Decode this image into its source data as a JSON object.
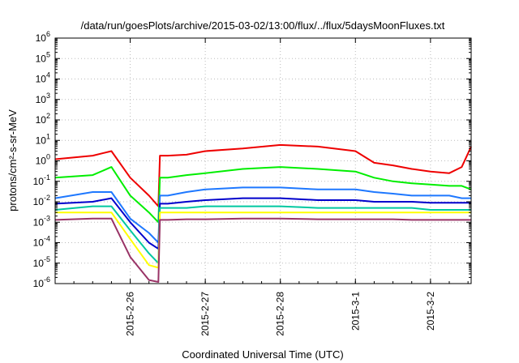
{
  "chart_data": {
    "type": "line",
    "title": "/data/run/goesPlots/archive/2015-03-02/13:00/flux/../flux/5daysMoonFluxes.txt",
    "xlabel": "Coordinated Universal Time (UTC)",
    "ylabel": "protons/cm²-s-sr-MeV",
    "yscale": "log",
    "ylim": [
      1e-06,
      1000000.0
    ],
    "xlim": [
      "2015-02-25T00:00",
      "2015-03-02T13:00"
    ],
    "x_ticks": [
      "2015-2-26",
      "2015-2-27",
      "2015-2-28",
      "2015-3-1",
      "2015-3-2"
    ],
    "y_ticks": [
      "10-6",
      "10-5",
      "10-4",
      "10-3",
      "10-2",
      "10-1",
      "100",
      "101",
      "102",
      "103",
      "104",
      "105",
      "106"
    ],
    "grid": true,
    "legend": "none",
    "x": [
      "2015-02-25T00:00",
      "2015-02-25T12:00",
      "2015-02-25T18:00",
      "2015-02-26T00:00",
      "2015-02-26T06:00",
      "2015-02-26T09:00",
      "2015-02-26T09:30",
      "2015-02-26T12:00",
      "2015-02-26T18:00",
      "2015-02-27T00:00",
      "2015-02-27T12:00",
      "2015-02-28T00:00",
      "2015-02-28T12:00",
      "2015-03-01T00:00",
      "2015-03-01T06:00",
      "2015-03-01T12:00",
      "2015-03-01T18:00",
      "2015-03-02T00:00",
      "2015-03-02T06:00",
      "2015-03-02T10:00",
      "2015-03-02T13:00"
    ],
    "series": [
      {
        "color": "#ee0000",
        "values": [
          1.2,
          1.8,
          3,
          0.15,
          0.02,
          0.006,
          1.8,
          1.8,
          2,
          3,
          4,
          6,
          5,
          3,
          0.8,
          0.6,
          0.4,
          0.3,
          0.25,
          0.5,
          5
        ]
      },
      {
        "color": "#00ee00",
        "values": [
          0.15,
          0.2,
          0.5,
          0.02,
          0.003,
          0.001,
          0.15,
          0.15,
          0.2,
          0.25,
          0.4,
          0.5,
          0.4,
          0.3,
          0.15,
          0.1,
          0.08,
          0.07,
          0.06,
          0.06,
          0.04
        ]
      },
      {
        "color": "#1e78ff",
        "values": [
          0.015,
          0.03,
          0.03,
          0.0015,
          0.0003,
          0.0001,
          0.02,
          0.02,
          0.03,
          0.04,
          0.05,
          0.05,
          0.04,
          0.04,
          0.03,
          0.025,
          0.02,
          0.02,
          0.02,
          0.015,
          0.015
        ]
      },
      {
        "color": "#0000cc",
        "values": [
          0.008,
          0.01,
          0.015,
          0.001,
          0.0001,
          5e-05,
          0.008,
          0.008,
          0.01,
          0.012,
          0.015,
          0.015,
          0.012,
          0.012,
          0.01,
          0.01,
          0.01,
          0.009,
          0.009,
          0.009,
          0.009
        ]
      },
      {
        "color": "#00c8a0",
        "values": [
          0.004,
          0.006,
          0.006,
          0.0004,
          3e-05,
          1e-05,
          0.005,
          0.005,
          0.005,
          0.006,
          0.006,
          0.006,
          0.005,
          0.005,
          0.005,
          0.005,
          0.005,
          0.004,
          0.004,
          0.004,
          0.004
        ]
      },
      {
        "color": "#ffff00",
        "values": [
          0.003,
          0.003,
          0.003,
          0.00015,
          8e-06,
          6e-06,
          0.003,
          0.003,
          0.003,
          0.003,
          0.003,
          0.003,
          0.003,
          0.003,
          0.003,
          0.003,
          0.003,
          0.003,
          0.003,
          0.003,
          0.003
        ]
      },
      {
        "color": "#993366",
        "values": [
          0.0013,
          0.0015,
          0.0015,
          2e-05,
          1.5e-06,
          1.2e-06,
          0.0013,
          0.0013,
          0.0014,
          0.0014,
          0.0015,
          0.0015,
          0.0014,
          0.0014,
          0.0014,
          0.0014,
          0.0013,
          0.0013,
          0.0013,
          0.0013,
          0.0013
        ]
      }
    ]
  }
}
